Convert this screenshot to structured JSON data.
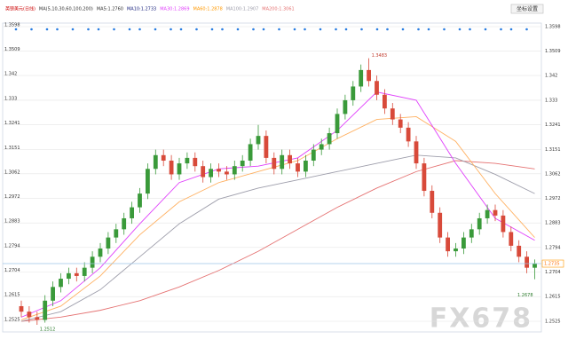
{
  "chart_data": {
    "type": "candlestick",
    "header": [
      {
        "text": "英镑美元(日线)",
        "color": "#c00"
      },
      {
        "text": "MA(5,10,30,60,100,200)",
        "color": "#333"
      },
      {
        "text": "MA5:1.2760",
        "color": "#333"
      },
      {
        "text": "MA10:1.2733",
        "color": "#1a237e"
      },
      {
        "text": "MA30:1.2869",
        "color": "#e040fb"
      },
      {
        "text": "MA60:1.2878",
        "color": "#ff9800"
      },
      {
        "text": "MA100:1.2907",
        "color": "#9e9eab"
      },
      {
        "text": "MA200:1.3061",
        "color": "#e57373"
      }
    ],
    "button": "坐标设置",
    "watermark": "FX678",
    "up_color": "#3a9a3a",
    "down_color": "#d84a3a",
    "ylim": [
      1.2525,
      1.3598
    ],
    "yticks": [
      1.3598,
      1.3509,
      1.342,
      1.333,
      1.3241,
      1.3151,
      1.3062,
      1.2972,
      1.2883,
      1.2794,
      1.2704,
      1.2615,
      1.2525
    ],
    "open": [
      1.258,
      1.256,
      1.254,
      1.253,
      1.26,
      1.265,
      1.268,
      1.27,
      1.269,
      1.272,
      1.276,
      1.279,
      1.283,
      1.286,
      1.29,
      1.294,
      1.299,
      1.308,
      1.313,
      1.311,
      1.306,
      1.31,
      1.312,
      1.309,
      1.305,
      1.308,
      1.307,
      1.306,
      1.309,
      1.311,
      1.317,
      1.32,
      1.312,
      1.308,
      1.313,
      1.31,
      1.307,
      1.311,
      1.315,
      1.317,
      1.321,
      1.328,
      1.333,
      1.338,
      1.344,
      1.34,
      1.335,
      1.33,
      1.326,
      1.323,
      1.318,
      1.31,
      1.3,
      1.292,
      1.283,
      1.278,
      1.279,
      1.283,
      1.286,
      1.29,
      1.293,
      1.291,
      1.285,
      1.28,
      1.276,
      1.272
    ],
    "high": [
      1.26,
      1.258,
      1.256,
      1.262,
      1.267,
      1.27,
      1.272,
      1.272,
      1.274,
      1.278,
      1.281,
      1.285,
      1.288,
      1.292,
      1.296,
      1.301,
      1.31,
      1.315,
      1.315,
      1.313,
      1.312,
      1.314,
      1.314,
      1.311,
      1.31,
      1.31,
      1.309,
      1.311,
      1.313,
      1.319,
      1.324,
      1.322,
      1.314,
      1.315,
      1.315,
      1.312,
      1.313,
      1.317,
      1.319,
      1.323,
      1.33,
      1.335,
      1.34,
      1.346,
      1.3483,
      1.342,
      1.337,
      1.332,
      1.328,
      1.325,
      1.32,
      1.312,
      1.302,
      1.294,
      1.285,
      1.281,
      1.285,
      1.288,
      1.292,
      1.295,
      1.295,
      1.293,
      1.287,
      1.282,
      1.278,
      1.275
    ],
    "low": [
      1.254,
      1.252,
      1.2512,
      1.252,
      1.258,
      1.263,
      1.266,
      1.267,
      1.267,
      1.27,
      1.274,
      1.277,
      1.281,
      1.284,
      1.288,
      1.292,
      1.297,
      1.306,
      1.309,
      1.304,
      1.304,
      1.308,
      1.307,
      1.303,
      1.303,
      1.305,
      1.304,
      1.304,
      1.307,
      1.309,
      1.315,
      1.31,
      1.306,
      1.306,
      1.308,
      1.305,
      1.305,
      1.309,
      1.313,
      1.315,
      1.319,
      1.326,
      1.331,
      1.336,
      1.338,
      1.333,
      1.328,
      1.324,
      1.321,
      1.316,
      1.308,
      1.298,
      1.29,
      1.281,
      1.276,
      1.276,
      1.277,
      1.281,
      1.284,
      1.288,
      1.289,
      1.283,
      1.278,
      1.274,
      1.27,
      1.2678
    ],
    "close": [
      1.256,
      1.254,
      1.253,
      1.26,
      1.265,
      1.268,
      1.27,
      1.269,
      1.272,
      1.276,
      1.279,
      1.283,
      1.286,
      1.29,
      1.294,
      1.299,
      1.308,
      1.313,
      1.311,
      1.306,
      1.31,
      1.312,
      1.309,
      1.305,
      1.308,
      1.307,
      1.306,
      1.309,
      1.311,
      1.317,
      1.32,
      1.312,
      1.308,
      1.313,
      1.31,
      1.307,
      1.311,
      1.315,
      1.317,
      1.321,
      1.328,
      1.333,
      1.338,
      1.344,
      1.34,
      1.335,
      1.33,
      1.326,
      1.323,
      1.318,
      1.31,
      1.3,
      1.292,
      1.283,
      1.278,
      1.279,
      1.283,
      1.286,
      1.29,
      1.293,
      1.291,
      1.285,
      1.28,
      1.276,
      1.272,
      1.2735
    ],
    "series": [
      {
        "color": "#e57373",
        "x": [
          0,
          5,
          10,
          15,
          20,
          25,
          30,
          35,
          40,
          45,
          50,
          55,
          60,
          65
        ],
        "values": [
          1.2525,
          1.254,
          1.2565,
          1.26,
          1.265,
          1.271,
          1.278,
          1.286,
          1.294,
          1.301,
          1.307,
          1.311,
          1.31,
          1.308
        ]
      },
      {
        "color": "#9e9eab",
        "x": [
          0,
          5,
          10,
          15,
          20,
          25,
          30,
          35,
          40,
          45,
          50,
          55,
          60,
          65
        ],
        "values": [
          1.2525,
          1.256,
          1.264,
          1.276,
          1.288,
          1.297,
          1.301,
          1.304,
          1.307,
          1.31,
          1.313,
          1.312,
          1.306,
          1.299
        ]
      },
      {
        "color": "#ffb060",
        "x": [
          0,
          5,
          10,
          15,
          20,
          25,
          30,
          35,
          40,
          45,
          50,
          55,
          60,
          65
        ],
        "values": [
          1.253,
          1.258,
          1.269,
          1.284,
          1.296,
          1.303,
          1.307,
          1.311,
          1.319,
          1.326,
          1.327,
          1.318,
          1.299,
          1.283
        ]
      },
      {
        "color": "#e040fb",
        "x": [
          0,
          5,
          10,
          15,
          20,
          25,
          30,
          35,
          40,
          45,
          50,
          55,
          60,
          65
        ],
        "values": [
          1.254,
          1.26,
          1.272,
          1.288,
          1.303,
          1.308,
          1.309,
          1.312,
          1.322,
          1.336,
          1.333,
          1.31,
          1.29,
          1.282
        ]
      }
    ]
  }
}
